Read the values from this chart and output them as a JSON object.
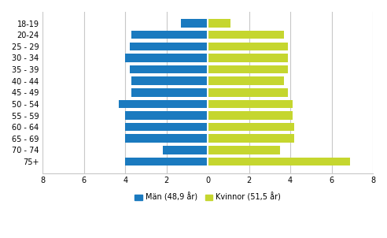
{
  "categories": [
    "18-19",
    "20-24",
    "25 - 29",
    "30 - 34",
    "35 - 39",
    "40 - 44",
    "45 - 49",
    "50 - 54",
    "55 - 59",
    "60 - 64",
    "65 - 69",
    "70 - 74",
    "75+"
  ],
  "men_values": [
    1.3,
    3.7,
    3.8,
    4.0,
    3.8,
    3.7,
    3.7,
    4.3,
    4.0,
    4.0,
    4.0,
    2.2,
    4.0
  ],
  "women_values": [
    1.1,
    3.7,
    3.9,
    3.9,
    3.9,
    3.7,
    3.9,
    4.1,
    4.1,
    4.2,
    4.2,
    3.5,
    6.9
  ],
  "men_color": "#1a7abf",
  "women_color": "#c5d62f",
  "xlim": [
    -8,
    8
  ],
  "xticks": [
    -8,
    -6,
    -4,
    -2,
    0,
    2,
    4,
    6,
    8
  ],
  "xtick_labels": [
    "8",
    "6",
    "4",
    "2",
    "0",
    "2",
    "4",
    "6",
    "8"
  ],
  "men_label": "Män (48,9 år)",
  "women_label": "Kvinnor (51,5 år)",
  "background_color": "#ffffff",
  "grid_color": "#c8c8c8",
  "bar_height": 0.72
}
